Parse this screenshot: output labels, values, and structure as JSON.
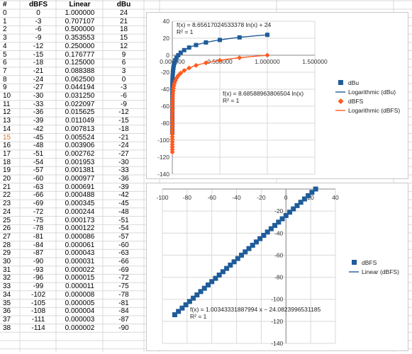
{
  "table": {
    "headers": [
      "#",
      "dBFS",
      "Linear",
      "dBu"
    ],
    "selected_row": "15",
    "rows": [
      [
        "0",
        "0",
        "1.000000",
        "24"
      ],
      [
        "1",
        "-3",
        "0.707107",
        "21"
      ],
      [
        "2",
        "-6",
        "0.500000",
        "18"
      ],
      [
        "3",
        "-9",
        "0.353553",
        "15"
      ],
      [
        "4",
        "-12",
        "0.250000",
        "12"
      ],
      [
        "5",
        "-15",
        "0.176777",
        "9"
      ],
      [
        "6",
        "-18",
        "0.125000",
        "6"
      ],
      [
        "7",
        "-21",
        "0.088388",
        "3"
      ],
      [
        "8",
        "-24",
        "0.062500",
        "0"
      ],
      [
        "9",
        "-27",
        "0.044194",
        "-3"
      ],
      [
        "10",
        "-30",
        "0.031250",
        "-6"
      ],
      [
        "11",
        "-33",
        "0.022097",
        "-9"
      ],
      [
        "12",
        "-36",
        "0.015625",
        "-12"
      ],
      [
        "13",
        "-39",
        "0.011049",
        "-15"
      ],
      [
        "14",
        "-42",
        "0.007813",
        "-18"
      ],
      [
        "15",
        "-45",
        "0.005524",
        "-21"
      ],
      [
        "16",
        "-48",
        "0.003906",
        "-24"
      ],
      [
        "17",
        "-51",
        "0.002762",
        "-27"
      ],
      [
        "18",
        "-54",
        "0.001953",
        "-30"
      ],
      [
        "19",
        "-57",
        "0.001381",
        "-33"
      ],
      [
        "20",
        "-60",
        "0.000977",
        "-36"
      ],
      [
        "21",
        "-63",
        "0.000691",
        "-39"
      ],
      [
        "22",
        "-66",
        "0.000488",
        "-42"
      ],
      [
        "23",
        "-69",
        "0.000345",
        "-45"
      ],
      [
        "24",
        "-72",
        "0.000244",
        "-48"
      ],
      [
        "25",
        "-75",
        "0.000173",
        "-51"
      ],
      [
        "26",
        "-78",
        "0.000122",
        "-54"
      ],
      [
        "27",
        "-81",
        "0.000086",
        "-57"
      ],
      [
        "28",
        "-84",
        "0.000061",
        "-60"
      ],
      [
        "29",
        "-87",
        "0.000043",
        "-63"
      ],
      [
        "30",
        "-90",
        "0.000031",
        "-66"
      ],
      [
        "31",
        "-93",
        "0.000022",
        "-69"
      ],
      [
        "32",
        "-96",
        "0.000015",
        "-72"
      ],
      [
        "33",
        "-99",
        "0.000011",
        "-75"
      ],
      [
        "34",
        "-102",
        "0.000008",
        "-78"
      ],
      [
        "35",
        "-105",
        "0.000005",
        "-81"
      ],
      [
        "36",
        "-108",
        "0.000004",
        "-84"
      ],
      [
        "37",
        "-111",
        "0.000003",
        "-87"
      ],
      [
        "38",
        "-114",
        "0.000002",
        "-90"
      ]
    ]
  },
  "chart_data": [
    {
      "type": "scatter",
      "title": "",
      "top_cut_label": "",
      "xlim": [
        0,
        1.5
      ],
      "ylim": [
        -140,
        40
      ],
      "x_ticks": [
        "0.000000",
        "0.500000",
        "1.000000",
        "1.500000"
      ],
      "y_ticks": [
        "40",
        "20",
        "0",
        "-20",
        "-40",
        "-60",
        "-80",
        "-100",
        "-120",
        "-140"
      ],
      "grid": true,
      "legend_position": "right",
      "series": [
        {
          "name": "dBu",
          "marker": "square",
          "color": "#1f5c99",
          "trendline": {
            "name": "Logarithmic (dBu)",
            "color": "#1f5c99",
            "equation": "f(x) = 8.65617024533378 ln(x) + 24",
            "r2": "R² = 1"
          }
        },
        {
          "name": "dBFS",
          "marker": "diamond",
          "color": "#ff5a1f",
          "trendline": {
            "name": "Logarithmic (dBFS)",
            "color": "#ff5a1f",
            "equation": "f(x) = 8.68588963806504 ln(x)",
            "r2": "R² = 1"
          }
        }
      ],
      "x_source": "table.rows[].Linear",
      "y_source": {
        "dBu": "table.rows[].dBu",
        "dBFS": "table.rows[].dBFS"
      }
    },
    {
      "type": "scatter",
      "xlim": [
        -100,
        40
      ],
      "ylim": [
        -140,
        0
      ],
      "x_ticks": [
        "-100",
        "-80",
        "-60",
        "-40",
        "-20",
        "0",
        "20",
        "40"
      ],
      "y_ticks": [
        "-20",
        "-40",
        "-60",
        "-80",
        "-100",
        "-120",
        "-140"
      ],
      "grid": true,
      "legend_position": "right",
      "series": [
        {
          "name": "dBFS",
          "marker": "square",
          "color": "#1f5c99",
          "trendline": {
            "name": "Linear (dBFS)",
            "color": "#1f5c99",
            "equation": "f(x) = 1.00343331887994 x − 24.0823996531185",
            "r2": "R² = 1"
          }
        }
      ],
      "x_source": "table.rows[].dBu",
      "y_source": "table.rows[].dBFS"
    }
  ]
}
